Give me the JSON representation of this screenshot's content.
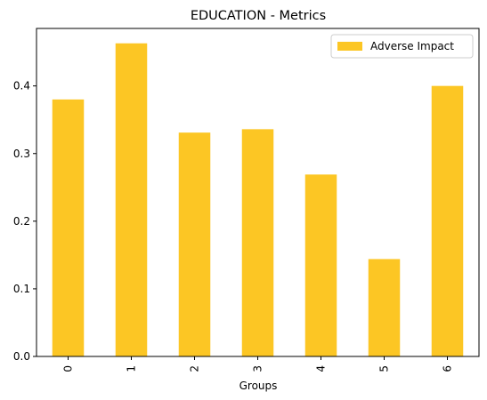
{
  "chart_data": {
    "type": "bar",
    "title": "EDUCATION - Metrics",
    "xlabel": "Groups",
    "ylabel": "",
    "categories": [
      "0",
      "1",
      "2",
      "3",
      "4",
      "5",
      "6"
    ],
    "series": [
      {
        "name": "Adverse Impact",
        "color": "#fcc624",
        "values": [
          0.38,
          0.463,
          0.331,
          0.336,
          0.269,
          0.144,
          0.4
        ]
      }
    ],
    "ylim": [
      0,
      0.485
    ],
    "yticks": [
      "0.0",
      "0.1",
      "0.2",
      "0.3",
      "0.4"
    ],
    "ytick_values": [
      0.0,
      0.1,
      0.2,
      0.3,
      0.4
    ],
    "legend_position": "top-right",
    "grid": false
  }
}
